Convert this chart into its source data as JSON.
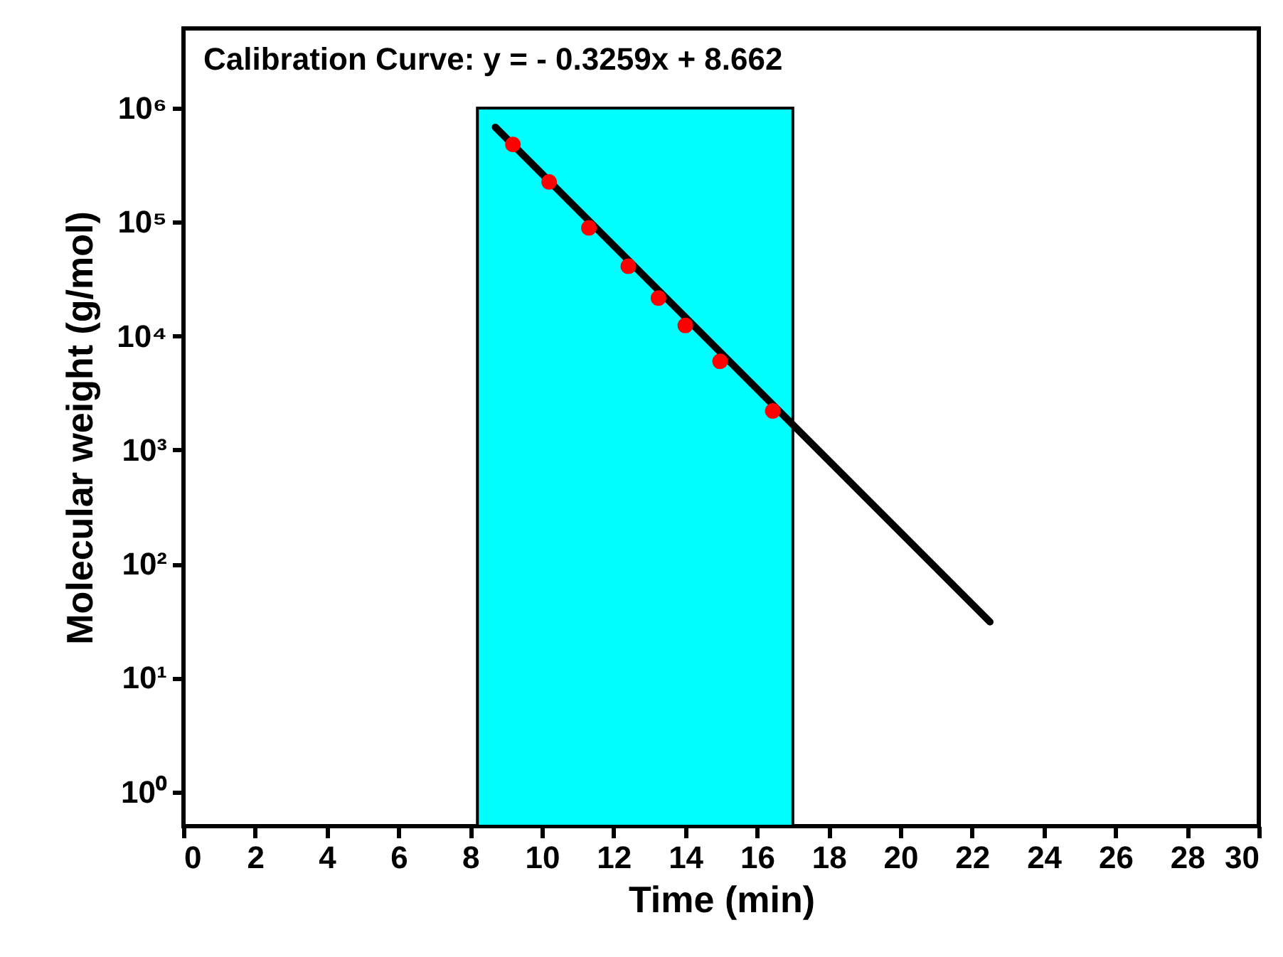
{
  "chart_data": {
    "type": "scatter",
    "xlabel": "Time (min)",
    "ylabel": "Molecular weight (g/mol)",
    "annotations": [
      "Calibration Curve: y = - 0.3259x + 8.662"
    ],
    "x": [
      9.19,
      10.2,
      11.31,
      12.41,
      13.25,
      14.0,
      14.97,
      16.44
    ],
    "series": [
      {
        "color": "#ff0000",
        "marker": "circle",
        "values": [
          480000,
          225000,
          89000,
          41000,
          21500,
          12400,
          6000,
          2200
        ]
      },
      {
        "type": "line",
        "line_style": "solid",
        "color": "#000000",
        "x": [
          8.7,
          22.5
        ],
        "values": [
          680000,
          31
        ]
      }
    ],
    "bands": [
      {
        "axis": "x",
        "from": 8.2,
        "to": 17.0,
        "color": "#00ffff"
      }
    ],
    "log": "y",
    "grid": false,
    "xlim": [
      0,
      30
    ],
    "xticks": [
      0,
      2,
      4,
      6,
      8,
      10,
      12,
      14,
      16,
      18,
      20,
      22,
      24,
      26,
      28,
      30
    ],
    "ylim": [
      0.5,
      5000000
    ],
    "yticks": [
      {
        "value": 1,
        "label": "10⁰"
      },
      {
        "value": 10,
        "label": "10¹"
      },
      {
        "value": 100,
        "label": "10²"
      },
      {
        "value": 1000,
        "label": "10³"
      },
      {
        "value": 10000,
        "label": "10⁴"
      },
      {
        "value": 100000,
        "label": "10⁵"
      },
      {
        "value": 1000000,
        "label": "10⁶"
      }
    ]
  }
}
